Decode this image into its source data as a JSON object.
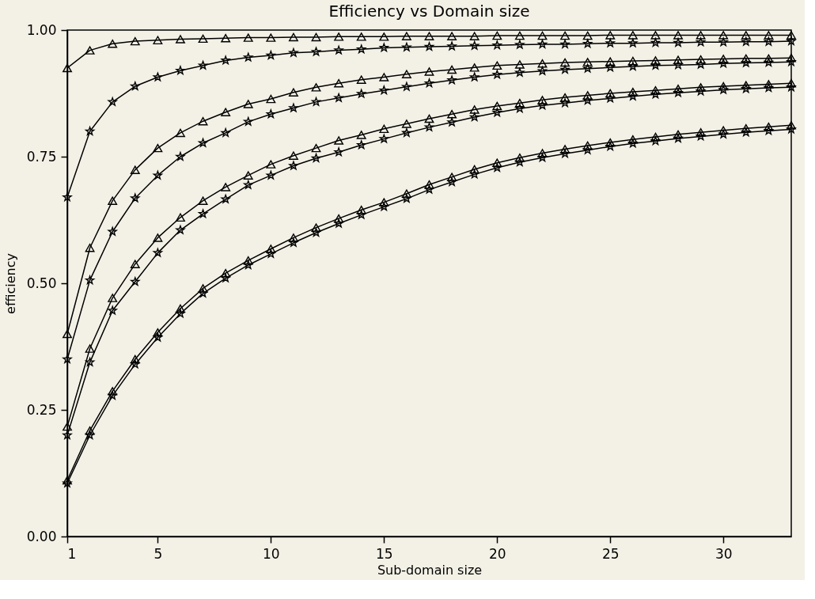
{
  "chart_data": {
    "type": "line",
    "title": "Efficiency vs Domain size",
    "xlabel": "Sub-domain size",
    "ylabel": "efficiency",
    "x": [
      1,
      2,
      3,
      4,
      5,
      6,
      7,
      8,
      9,
      10,
      11,
      12,
      13,
      14,
      15,
      16,
      17,
      18,
      19,
      20,
      21,
      22,
      23,
      24,
      25,
      26,
      27,
      28,
      29,
      30,
      31,
      32,
      33
    ],
    "xlim": [
      1,
      33
    ],
    "xticks": [
      1,
      5,
      10,
      15,
      20,
      25,
      30
    ],
    "ylim": [
      0,
      1.0
    ],
    "yticks": [
      {
        "value": 0,
        "label": "0.00"
      },
      0.25,
      {
        "value": 0.5,
        "label": "0.50"
      },
      0.75,
      {
        "value": 1,
        "label": "1.00"
      }
    ],
    "grid": false,
    "line_style": "solid",
    "series": [
      {
        "color": "#000000",
        "marker": "triangle",
        "values": [
          0.925,
          0.96,
          0.973,
          0.978,
          0.98,
          0.982,
          0.983,
          0.984,
          0.985,
          0.985,
          0.986,
          0.986,
          0.987,
          0.987,
          0.987,
          0.988,
          0.988,
          0.988,
          0.988,
          0.989,
          0.989,
          0.989,
          0.989,
          0.989,
          0.99,
          0.99,
          0.99,
          0.99,
          0.99,
          0.99,
          0.99,
          0.99,
          0.99
        ]
      },
      {
        "color": "#000000",
        "marker": "star",
        "values": [
          0.67,
          0.8,
          0.858,
          0.889,
          0.907,
          0.92,
          0.93,
          0.94,
          0.946,
          0.95,
          0.955,
          0.957,
          0.96,
          0.962,
          0.965,
          0.966,
          0.967,
          0.968,
          0.969,
          0.97,
          0.971,
          0.972,
          0.972,
          0.973,
          0.974,
          0.974,
          0.975,
          0.975,
          0.976,
          0.976,
          0.977,
          0.977,
          0.978
        ]
      },
      {
        "color": "#000000",
        "marker": "triangle",
        "values": [
          0.4,
          0.57,
          0.663,
          0.724,
          0.767,
          0.797,
          0.82,
          0.838,
          0.854,
          0.864,
          0.877,
          0.887,
          0.895,
          0.902,
          0.907,
          0.913,
          0.918,
          0.922,
          0.926,
          0.93,
          0.932,
          0.934,
          0.936,
          0.937,
          0.938,
          0.939,
          0.94,
          0.941,
          0.942,
          0.943,
          0.944,
          0.944,
          0.945
        ]
      },
      {
        "color": "#000000",
        "marker": "star",
        "values": [
          0.35,
          0.506,
          0.602,
          0.668,
          0.713,
          0.75,
          0.777,
          0.797,
          0.819,
          0.834,
          0.846,
          0.858,
          0.866,
          0.874,
          0.881,
          0.888,
          0.895,
          0.901,
          0.907,
          0.912,
          0.916,
          0.919,
          0.922,
          0.924,
          0.926,
          0.928,
          0.93,
          0.931,
          0.932,
          0.934,
          0.935,
          0.936,
          0.937
        ]
      },
      {
        "color": "#000000",
        "marker": "triangle",
        "values": [
          0.217,
          0.371,
          0.471,
          0.538,
          0.59,
          0.63,
          0.663,
          0.69,
          0.713,
          0.735,
          0.752,
          0.767,
          0.782,
          0.793,
          0.805,
          0.815,
          0.825,
          0.834,
          0.843,
          0.85,
          0.856,
          0.862,
          0.867,
          0.871,
          0.875,
          0.878,
          0.881,
          0.884,
          0.887,
          0.889,
          0.891,
          0.893,
          0.895
        ]
      },
      {
        "color": "#000000",
        "marker": "star",
        "values": [
          0.2,
          0.344,
          0.446,
          0.503,
          0.56,
          0.605,
          0.637,
          0.666,
          0.694,
          0.713,
          0.732,
          0.747,
          0.759,
          0.773,
          0.785,
          0.797,
          0.808,
          0.818,
          0.828,
          0.837,
          0.845,
          0.851,
          0.856,
          0.861,
          0.865,
          0.869,
          0.873,
          0.876,
          0.879,
          0.882,
          0.884,
          0.886,
          0.887
        ]
      },
      {
        "color": "#000000",
        "marker": "triangle",
        "values": [
          0.111,
          0.209,
          0.287,
          0.35,
          0.403,
          0.45,
          0.49,
          0.52,
          0.545,
          0.568,
          0.59,
          0.61,
          0.628,
          0.645,
          0.66,
          0.677,
          0.695,
          0.71,
          0.725,
          0.738,
          0.748,
          0.757,
          0.765,
          0.772,
          0.778,
          0.784,
          0.789,
          0.794,
          0.798,
          0.802,
          0.806,
          0.809,
          0.812
        ]
      },
      {
        "color": "#000000",
        "marker": "star",
        "values": [
          0.105,
          0.2,
          0.278,
          0.34,
          0.393,
          0.44,
          0.48,
          0.51,
          0.536,
          0.558,
          0.58,
          0.6,
          0.618,
          0.635,
          0.651,
          0.667,
          0.685,
          0.7,
          0.715,
          0.728,
          0.739,
          0.748,
          0.756,
          0.763,
          0.77,
          0.776,
          0.781,
          0.786,
          0.79,
          0.794,
          0.798,
          0.801,
          0.804
        ]
      }
    ]
  }
}
